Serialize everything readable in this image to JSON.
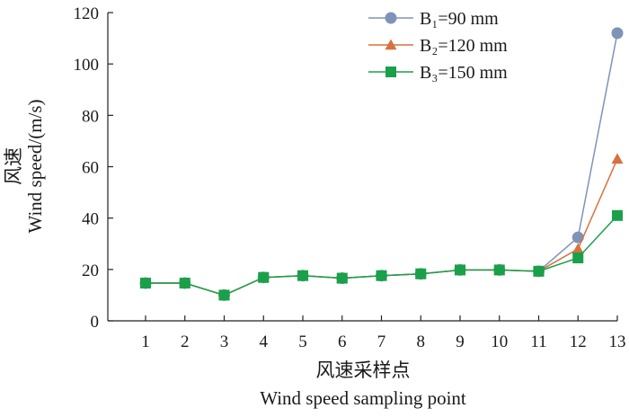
{
  "chart_data": {
    "type": "line",
    "categories": [
      "1",
      "2",
      "3",
      "4",
      "5",
      "6",
      "7",
      "8",
      "9",
      "10",
      "11",
      "12",
      "13"
    ],
    "series": [
      {
        "name": "B₁=90 mm",
        "marker": "circle",
        "color": "#7f93b9",
        "values": [
          14.7,
          14.7,
          10.0,
          16.9,
          17.6,
          16.6,
          17.6,
          18.3,
          19.8,
          19.8,
          19.3,
          32.5,
          112.0
        ]
      },
      {
        "name": "B₂=120 mm",
        "marker": "triangle",
        "color": "#d7713f",
        "values": [
          14.7,
          14.7,
          10.0,
          16.9,
          17.6,
          16.6,
          17.6,
          18.3,
          19.8,
          19.8,
          19.3,
          28.0,
          63.0
        ]
      },
      {
        "name": "B₃=150 mm",
        "marker": "square",
        "color": "#1aa049",
        "values": [
          14.7,
          14.7,
          10.0,
          16.9,
          17.6,
          16.6,
          17.6,
          18.3,
          19.8,
          19.8,
          19.3,
          24.5,
          41.0
        ]
      }
    ],
    "yticks": [
      0,
      20,
      40,
      60,
      80,
      100,
      120
    ],
    "ylim": [
      0,
      120
    ],
    "ylabel_cn": "风速",
    "ylabel_en": "Wind speed/(m/s)",
    "xlabel_cn": "风速采样点",
    "xlabel_en": "Wind speed sampling point",
    "legend_position": "top-right",
    "grid": false
  }
}
